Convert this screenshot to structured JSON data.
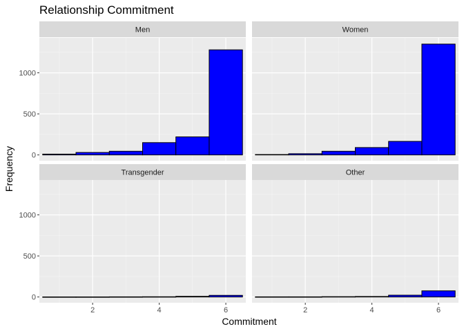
{
  "chart_data": {
    "type": "bar",
    "title": "Relationship Commitment",
    "xlabel": "Commitment",
    "ylabel": "Frequency",
    "xlim": [
      0.4,
      6.6
    ],
    "ylim": [
      -70,
      1425
    ],
    "x_ticks": [
      2,
      4,
      6
    ],
    "y_ticks": [
      0,
      500,
      1000
    ],
    "bins": [
      [
        0.5,
        1.5
      ],
      [
        1.5,
        2.5
      ],
      [
        2.5,
        3.5
      ],
      [
        3.5,
        4.5
      ],
      [
        4.5,
        5.5
      ],
      [
        5.5,
        6.5
      ]
    ],
    "fill_color": "#0000ff",
    "border_color": "#000000",
    "grid": true,
    "panels": [
      {
        "name": "Men",
        "values": [
          10,
          30,
          45,
          150,
          220,
          1280
        ]
      },
      {
        "name": "Women",
        "values": [
          5,
          15,
          45,
          90,
          165,
          1350
        ]
      },
      {
        "name": "Transgender",
        "values": [
          1,
          1,
          2,
          3,
          8,
          20
        ]
      },
      {
        "name": "Other",
        "values": [
          2,
          2,
          4,
          6,
          22,
          75
        ]
      }
    ]
  }
}
